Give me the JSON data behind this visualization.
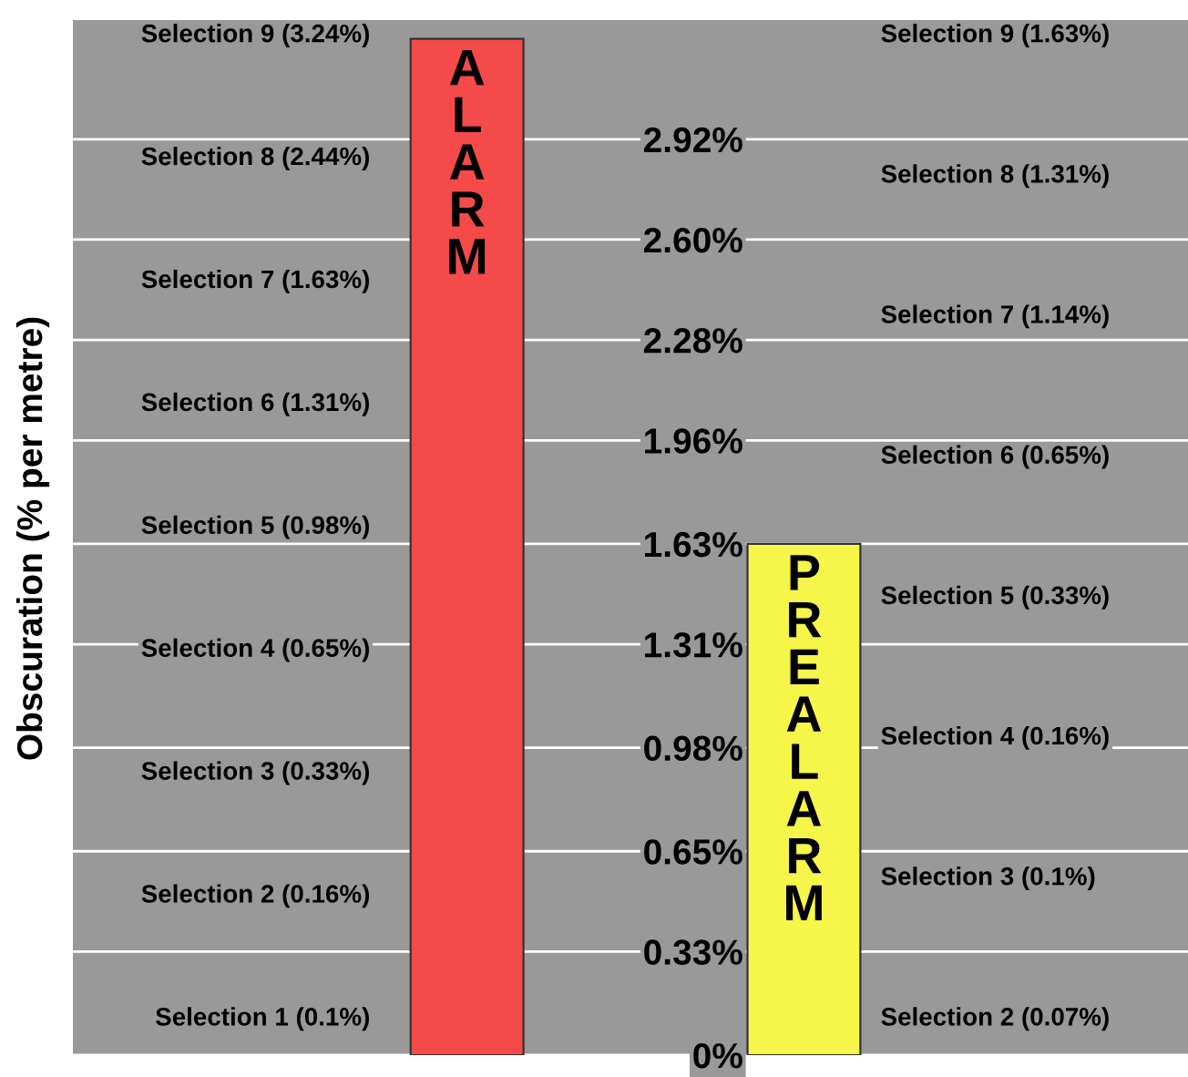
{
  "chart_data": {
    "type": "bar",
    "ylabel": "Obscuration (% per metre)",
    "categories": [
      "ALARM",
      "PREALARM"
    ],
    "values": [
      3.24,
      1.63
    ],
    "colors": [
      "#f44a4a",
      "#f5f54a"
    ],
    "ylim": [
      0,
      3.3
    ],
    "yticks": [
      {
        "value": 0,
        "label": "0%"
      },
      {
        "value": 0.33,
        "label": "0.33%"
      },
      {
        "value": 0.65,
        "label": "0.65%"
      },
      {
        "value": 0.98,
        "label": "0.98%"
      },
      {
        "value": 1.31,
        "label": "1.31%"
      },
      {
        "value": 1.63,
        "label": "1.63%"
      },
      {
        "value": 1.96,
        "label": "1.96%"
      },
      {
        "value": 2.28,
        "label": "2.28%"
      },
      {
        "value": 2.6,
        "label": "2.60%"
      },
      {
        "value": 2.92,
        "label": "2.92%"
      }
    ],
    "grid": "y",
    "annotations": [
      "Selection 9 (3.24%)",
      "Selection 8 (2.44%)",
      "Selection 7 (1.63%)",
      "Selection 6 (1.31%)",
      "Selection 5 (0.98%)",
      "Selection 4 (0.65%)",
      "Selection 3 (0.33%)",
      "Selection 2 (0.16%)",
      "Selection 1 (0.1%)",
      "Selection 9 (1.63%)",
      "Selection 8 (1.31%)",
      "Selection 7 (1.14%)",
      "Selection 6 (0.65%)",
      "Selection 5 (0.33%)",
      "Selection 4 (0.16%)",
      "Selection 3 (0.1%)",
      "Selection 2 (0.07%)"
    ]
  }
}
